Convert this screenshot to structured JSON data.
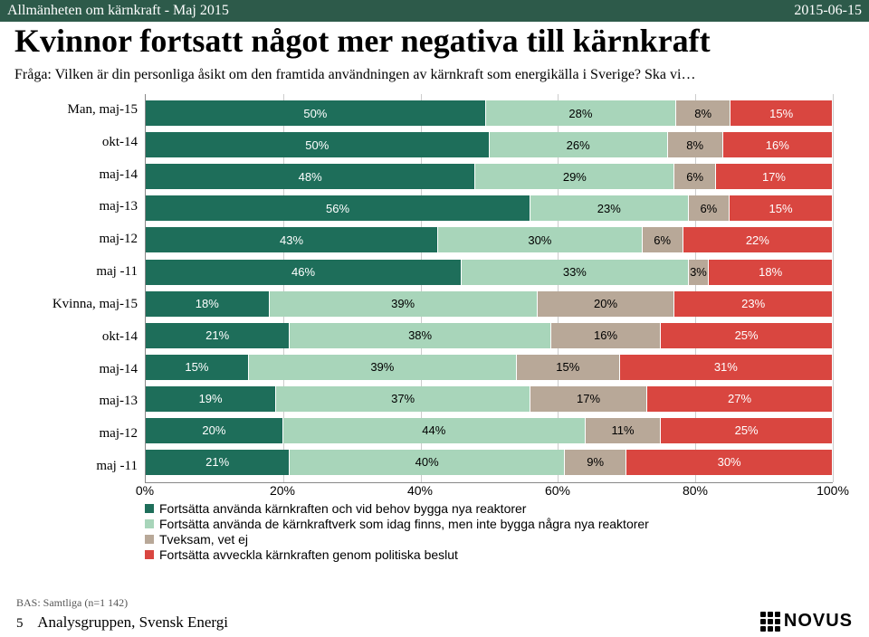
{
  "header": {
    "left": "Allmänheten om kärnkraft - Maj 2015",
    "right": "2015-06-15"
  },
  "title": "Kvinnor fortsatt något mer negativa till kärnkraft",
  "subtitle": "Fråga: Vilken är din personliga åsikt om den framtida användningen av kärnkraft som energikälla i Sverige? Ska vi…",
  "chart": {
    "type": "stacked-bar-horizontal",
    "xlim": [
      0,
      100
    ],
    "xticks": [
      "0%",
      "20%",
      "40%",
      "60%",
      "80%",
      "100%"
    ],
    "categories": [
      "Man, maj-15",
      "okt-14",
      "maj-14",
      "maj-13",
      "maj-12",
      "maj -11",
      "Kvinna, maj-15",
      "okt-14",
      "maj-14",
      "maj-13",
      "maj-12",
      "maj -11"
    ],
    "series": [
      {
        "label": "Fortsätta använda kärnkraften och vid behov bygga nya reaktorer",
        "color": "#1e6e5a"
      },
      {
        "label": "Fortsätta använda de kärnkraftverk som idag finns, men inte bygga några nya reaktorer",
        "color": "#a8d5ba"
      },
      {
        "label": "Tveksam, vet ej",
        "color": "#b8a898"
      },
      {
        "label": "Fortsätta avveckla kärnkraften genom politiska beslut",
        "color": "#d94640"
      }
    ],
    "data": [
      [
        50,
        28,
        8,
        15
      ],
      [
        50,
        26,
        8,
        16
      ],
      [
        48,
        29,
        6,
        17
      ],
      [
        56,
        23,
        6,
        15
      ],
      [
        43,
        30,
        6,
        22
      ],
      [
        46,
        33,
        3,
        18
      ],
      [
        18,
        39,
        20,
        23
      ],
      [
        21,
        38,
        16,
        25
      ],
      [
        15,
        39,
        15,
        31
      ],
      [
        19,
        37,
        17,
        27
      ],
      [
        20,
        44,
        11,
        25
      ],
      [
        21,
        40,
        9,
        30
      ]
    ],
    "label_colors": [
      "#ffffff",
      "#000000",
      "#000000",
      "#ffffff"
    ],
    "grid_color": "#cccccc",
    "bar_fontsize": 13,
    "label_fontsize": 15
  },
  "footer": {
    "bas": "BAS: Samtliga (n=1 142)",
    "page": "5",
    "org": "Analysgruppen, Svensk Energi",
    "logo_text": "NOVUS"
  }
}
